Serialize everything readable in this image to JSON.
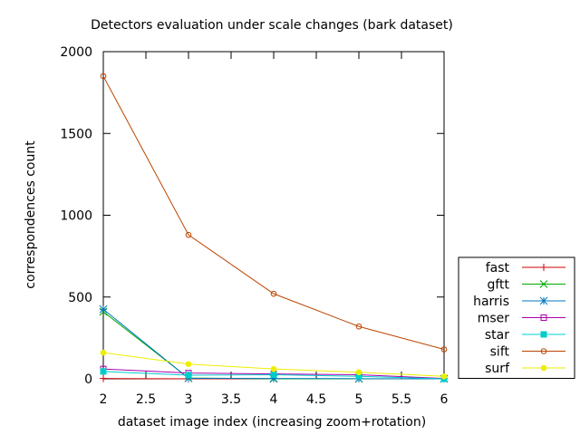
{
  "chart_data": {
    "type": "line",
    "title": "Detectors evaluation under scale changes (bark dataset)",
    "xlabel": "dataset image index (increasing zoom+rotation)",
    "ylabel": "correspondences count",
    "xlim": [
      2,
      6
    ],
    "ylim": [
      0,
      2000
    ],
    "xticks": [
      2,
      2.5,
      3,
      3.5,
      4,
      4.5,
      5,
      5.5,
      6
    ],
    "xtick_labels": [
      "2",
      "2.5",
      "3",
      "3.5",
      "4",
      "4.5",
      "5",
      "5.5",
      "6"
    ],
    "yticks": [
      0,
      500,
      1000,
      1500,
      2000
    ],
    "ytick_labels": [
      "0",
      "500",
      "1000",
      "1500",
      "2000"
    ],
    "grid": false,
    "legend_position": "bottom-right-outside",
    "x": [
      2,
      3,
      4,
      5,
      6
    ],
    "series": [
      {
        "name": "fast",
        "color": "#cc0000",
        "marker": "plus",
        "values": [
          2,
          0,
          0,
          0,
          0
        ]
      },
      {
        "name": "gftt",
        "color": "#00aa00",
        "marker": "cross",
        "values": [
          410,
          5,
          0,
          0,
          0
        ]
      },
      {
        "name": "harris",
        "color": "#0077bb",
        "marker": "star",
        "values": [
          425,
          3,
          2,
          1,
          0
        ]
      },
      {
        "name": "mser",
        "color": "#aa00aa",
        "marker": "open-square",
        "values": [
          60,
          35,
          30,
          25,
          2
        ]
      },
      {
        "name": "star",
        "color": "#00cccc",
        "marker": "filled-square",
        "values": [
          45,
          22,
          25,
          15,
          0
        ]
      },
      {
        "name": "sift",
        "color": "#bb4400",
        "marker": "open-circle",
        "values": [
          1850,
          880,
          520,
          320,
          180
        ]
      },
      {
        "name": "surf",
        "color": "#eeee00",
        "marker": "filled-circle",
        "values": [
          160,
          90,
          60,
          40,
          15
        ]
      }
    ]
  }
}
